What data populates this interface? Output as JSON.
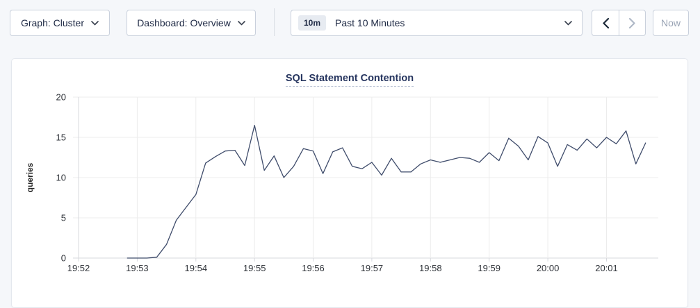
{
  "topbar": {
    "graph_dropdown": {
      "label": "Graph: Cluster"
    },
    "dashboard_dropdown": {
      "label": "Dashboard: Overview"
    },
    "time_selector": {
      "badge": "10m",
      "label": "Past 10 Minutes"
    },
    "now_button_label": "Now"
  },
  "chart": {
    "title": "SQL Statement Contention"
  },
  "chart_data": {
    "type": "line",
    "title": "SQL Statement Contention",
    "xlabel": "",
    "ylabel": "queries",
    "ylim": [
      0,
      20
    ],
    "yticks": [
      0,
      5,
      10,
      15,
      20
    ],
    "grid": true,
    "legend": "none",
    "xlim_seconds": [
      0,
      593
    ],
    "xticks": [
      {
        "seconds": 0,
        "label": "19:52"
      },
      {
        "seconds": 60,
        "label": "19:53"
      },
      {
        "seconds": 120,
        "label": "19:54"
      },
      {
        "seconds": 180,
        "label": "19:55"
      },
      {
        "seconds": 240,
        "label": "19:56"
      },
      {
        "seconds": 300,
        "label": "19:57"
      },
      {
        "seconds": 360,
        "label": "19:58"
      },
      {
        "seconds": 420,
        "label": "19:59"
      },
      {
        "seconds": 480,
        "label": "20:00"
      },
      {
        "seconds": 540,
        "label": "20:01"
      }
    ],
    "series": [
      {
        "name": "SQL Statement Contention",
        "x_seconds": [
          50,
          60,
          70,
          80,
          90,
          100,
          110,
          120,
          130,
          140,
          150,
          160,
          170,
          180,
          190,
          200,
          210,
          220,
          230,
          240,
          250,
          260,
          270,
          280,
          290,
          300,
          310,
          320,
          330,
          340,
          350,
          360,
          370,
          380,
          390,
          400,
          410,
          420,
          430,
          440,
          450,
          460,
          470,
          480,
          490,
          500,
          510,
          520,
          530,
          540,
          550,
          560,
          570,
          580
        ],
        "values": [
          0,
          0,
          0,
          0.1,
          1.7,
          4.7,
          6.3,
          7.9,
          11.8,
          12.6,
          13.3,
          13.4,
          11.5,
          16.5,
          10.9,
          12.7,
          10.0,
          11.4,
          13.6,
          13.3,
          10.5,
          13.2,
          13.7,
          11.4,
          11.1,
          11.9,
          10.3,
          12.4,
          10.7,
          10.7,
          11.7,
          12.2,
          11.9,
          12.2,
          12.5,
          12.4,
          11.9,
          13.1,
          12.1,
          14.9,
          13.9,
          12.2,
          15.1,
          14.3,
          11.4,
          14.1,
          13.4,
          14.8,
          13.7,
          15.0,
          14.2,
          15.8,
          11.7,
          14.3
        ]
      }
    ]
  },
  "colors": {
    "page_bg": "#f5f7fa",
    "card_bg": "#ffffff",
    "control_border": "#c9d0dc",
    "control_text": "#1f2a45",
    "disabled_text": "#99a3b4",
    "badge_bg": "#e7ebf1",
    "title_text": "#25345e",
    "title_underline": "#b9c2d3",
    "gridline": "#ececec",
    "axis_line": "#d7d9de",
    "tick_text": "#2e3238",
    "axis_label_text": "#262626",
    "line": "#3f4c6b",
    "chevron_dark": "#1b2838",
    "chevron_muted": "#39414f",
    "chevron_disabled": "#b0b9c7"
  }
}
